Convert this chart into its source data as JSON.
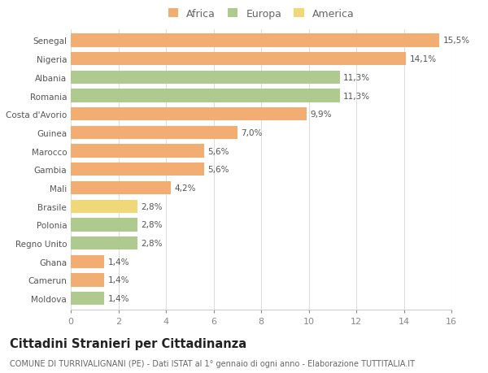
{
  "countries": [
    "Senegal",
    "Nigeria",
    "Albania",
    "Romania",
    "Costa d'Avorio",
    "Guinea",
    "Marocco",
    "Gambia",
    "Mali",
    "Brasile",
    "Polonia",
    "Regno Unito",
    "Ghana",
    "Camerun",
    "Moldova"
  ],
  "values": [
    15.5,
    14.1,
    11.3,
    11.3,
    9.9,
    7.0,
    5.6,
    5.6,
    4.2,
    2.8,
    2.8,
    2.8,
    1.4,
    1.4,
    1.4
  ],
  "labels": [
    "15,5%",
    "14,1%",
    "11,3%",
    "11,3%",
    "9,9%",
    "7,0%",
    "5,6%",
    "5,6%",
    "4,2%",
    "2,8%",
    "2,8%",
    "2,8%",
    "1,4%",
    "1,4%",
    "1,4%"
  ],
  "continents": [
    "Africa",
    "Africa",
    "Europa",
    "Europa",
    "Africa",
    "Africa",
    "Africa",
    "Africa",
    "Africa",
    "America",
    "Europa",
    "Europa",
    "Africa",
    "Africa",
    "Europa"
  ],
  "colors": {
    "Africa": "#F2AE72",
    "Europa": "#AECA8E",
    "America": "#F0D878"
  },
  "title": "Cittadini Stranieri per Cittadinanza",
  "subtitle": "COMUNE DI TURRIVALIGNANI (PE) - Dati ISTAT al 1° gennaio di ogni anno - Elaborazione TUTTITALIA.IT",
  "xlim": [
    0,
    16
  ],
  "xticks": [
    0,
    2,
    4,
    6,
    8,
    10,
    12,
    14,
    16
  ],
  "bg_color": "#FFFFFF",
  "grid_color": "#DDDDDD",
  "bar_height": 0.72,
  "label_fontsize": 7.5,
  "ytick_fontsize": 7.5,
  "xtick_fontsize": 8.0,
  "title_fontsize": 10.5,
  "subtitle_fontsize": 7.0
}
